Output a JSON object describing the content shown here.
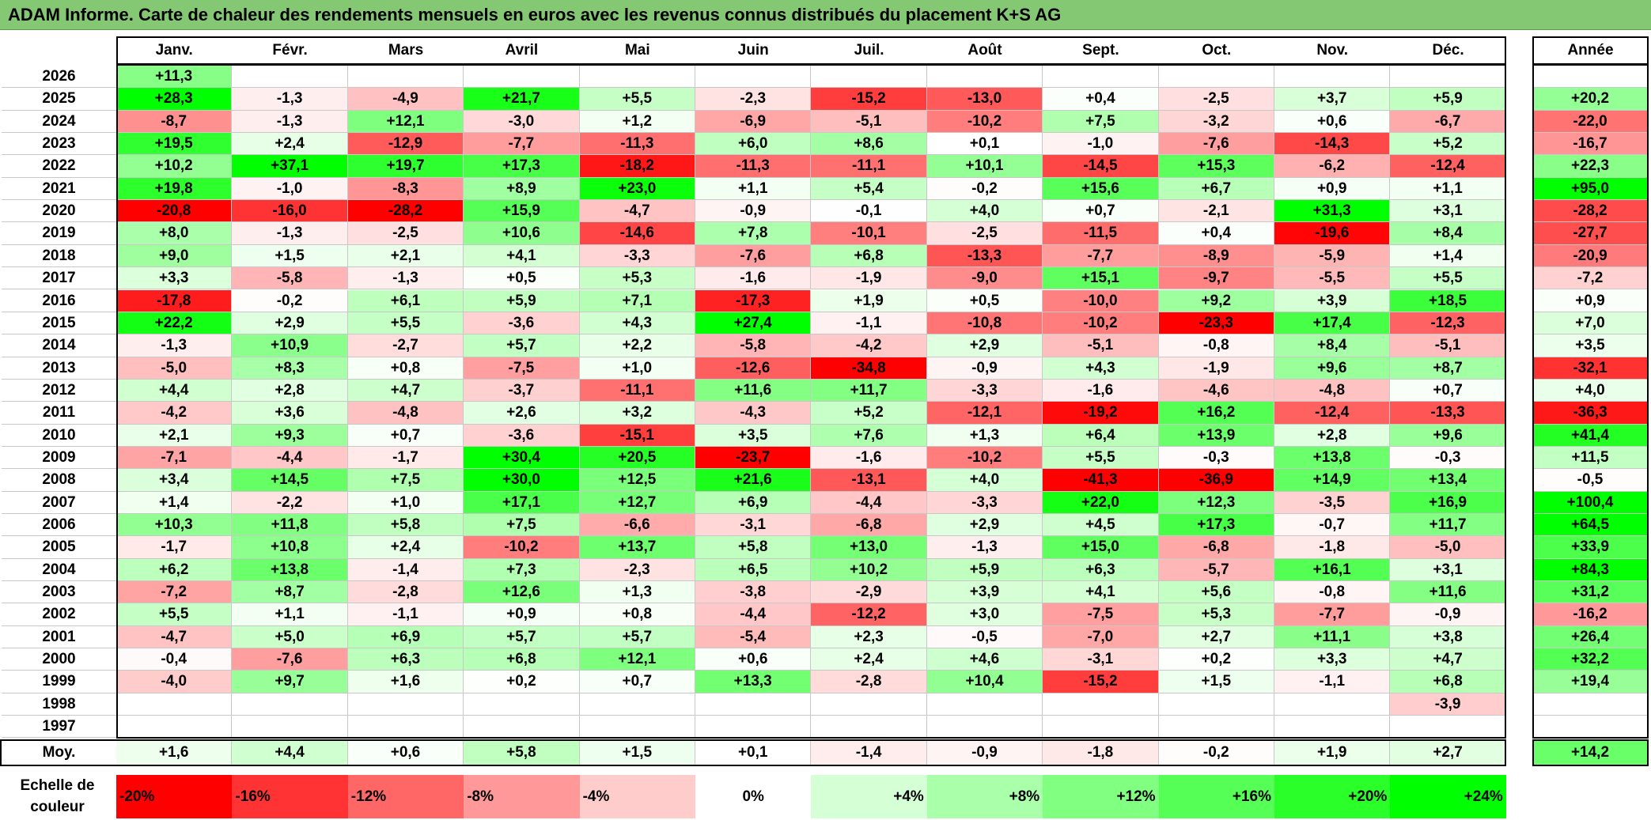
{
  "title": "ADAM Informe. Carte de chaleur des rendements mensuels en euros avec les revenus connus distribués du placement K+S AG",
  "chart_data": {
    "type": "heatmap",
    "months": [
      "Janv.",
      "Févr.",
      "Mars",
      "Avril",
      "Mai",
      "Juin",
      "Juil.",
      "Août",
      "Sept.",
      "Oct.",
      "Nov.",
      "Déc."
    ],
    "year_header": "Année",
    "avg_label": "Moy.",
    "rows": [
      {
        "year": "2026",
        "values": [
          "+11,3",
          "",
          "",
          "",
          "",
          "",
          "",
          "",
          "",
          "",
          "",
          ""
        ],
        "annual": ""
      },
      {
        "year": "2025",
        "values": [
          "+28,3",
          "-1,3",
          "-4,9",
          "+21,7",
          "+5,5",
          "-2,3",
          "-15,2",
          "-13,0",
          "+0,4",
          "-2,5",
          "+3,7",
          "+5,9"
        ],
        "annual": "+20,2"
      },
      {
        "year": "2024",
        "values": [
          "-8,7",
          "-1,3",
          "+12,1",
          "-3,0",
          "+1,2",
          "-6,9",
          "-5,1",
          "-10,2",
          "+7,5",
          "-3,2",
          "+0,6",
          "-6,7"
        ],
        "annual": "-22,0"
      },
      {
        "year": "2023",
        "values": [
          "+19,5",
          "+2,4",
          "-12,9",
          "-7,7",
          "-11,3",
          "+6,0",
          "+8,6",
          "+0,1",
          "-1,0",
          "-7,6",
          "-14,3",
          "+5,2"
        ],
        "annual": "-16,7"
      },
      {
        "year": "2022",
        "values": [
          "+10,2",
          "+37,1",
          "+19,7",
          "+17,3",
          "-18,2",
          "-11,3",
          "-11,1",
          "+10,1",
          "-14,5",
          "+15,3",
          "-6,2",
          "-12,4"
        ],
        "annual": "+22,3"
      },
      {
        "year": "2021",
        "values": [
          "+19,8",
          "-1,0",
          "-8,3",
          "+8,9",
          "+23,0",
          "+1,1",
          "+5,4",
          "-0,2",
          "+15,6",
          "+6,7",
          "+0,9",
          "+1,1"
        ],
        "annual": "+95,0"
      },
      {
        "year": "2020",
        "values": [
          "-20,8",
          "-16,0",
          "-28,2",
          "+15,9",
          "-4,7",
          "-0,9",
          "-0,1",
          "+4,0",
          "+0,7",
          "-2,1",
          "+31,3",
          "+3,1"
        ],
        "annual": "-28,2"
      },
      {
        "year": "2019",
        "values": [
          "+8,0",
          "-1,3",
          "-2,5",
          "+10,6",
          "-14,6",
          "+7,8",
          "-10,1",
          "-2,5",
          "-11,5",
          "+0,4",
          "-19,6",
          "+8,4"
        ],
        "annual": "-27,7"
      },
      {
        "year": "2018",
        "values": [
          "+9,0",
          "+1,5",
          "+2,1",
          "+4,1",
          "-3,3",
          "-7,6",
          "+6,8",
          "-13,3",
          "-7,7",
          "-8,9",
          "-5,9",
          "+1,4"
        ],
        "annual": "-20,9"
      },
      {
        "year": "2017",
        "values": [
          "+3,3",
          "-5,8",
          "-1,3",
          "+0,5",
          "+5,3",
          "-1,6",
          "-1,9",
          "-9,0",
          "+15,1",
          "-9,7",
          "-5,5",
          "+5,5"
        ],
        "annual": "-7,2"
      },
      {
        "year": "2016",
        "values": [
          "-17,8",
          "-0,2",
          "+6,1",
          "+5,9",
          "+7,1",
          "-17,3",
          "+1,9",
          "+0,5",
          "-10,0",
          "+9,2",
          "+3,9",
          "+18,5"
        ],
        "annual": "+0,9"
      },
      {
        "year": "2015",
        "values": [
          "+22,2",
          "+2,9",
          "+5,5",
          "-3,6",
          "+4,3",
          "+27,4",
          "-1,1",
          "-10,8",
          "-10,2",
          "-23,3",
          "+17,4",
          "-12,3"
        ],
        "annual": "+7,0"
      },
      {
        "year": "2014",
        "values": [
          "-1,3",
          "+10,9",
          "-2,7",
          "+5,7",
          "+2,2",
          "-5,8",
          "-4,2",
          "+2,9",
          "-5,1",
          "-0,8",
          "+8,4",
          "-5,1"
        ],
        "annual": "+3,5"
      },
      {
        "year": "2013",
        "values": [
          "-5,0",
          "+8,3",
          "+0,8",
          "-7,5",
          "+1,0",
          "-12,6",
          "-34,8",
          "-0,9",
          "+4,3",
          "-1,9",
          "+9,6",
          "+8,7"
        ],
        "annual": "-32,1"
      },
      {
        "year": "2012",
        "values": [
          "+4,4",
          "+2,8",
          "+4,7",
          "-3,7",
          "-11,1",
          "+11,6",
          "+11,7",
          "-3,3",
          "-1,6",
          "-4,6",
          "-4,8",
          "+0,7"
        ],
        "annual": "+4,0"
      },
      {
        "year": "2011",
        "values": [
          "-4,2",
          "+3,6",
          "-4,8",
          "+2,6",
          "+3,2",
          "-4,3",
          "+5,2",
          "-12,1",
          "-19,2",
          "+16,2",
          "-12,4",
          "-13,3"
        ],
        "annual": "-36,3"
      },
      {
        "year": "2010",
        "values": [
          "+2,1",
          "+9,3",
          "+0,7",
          "-3,6",
          "-15,1",
          "+3,5",
          "+7,6",
          "+1,3",
          "+6,4",
          "+13,9",
          "+2,8",
          "+9,6"
        ],
        "annual": "+41,4"
      },
      {
        "year": "2009",
        "values": [
          "-7,1",
          "-4,4",
          "-1,7",
          "+30,4",
          "+20,5",
          "-23,7",
          "-1,6",
          "-10,2",
          "+5,5",
          "-0,3",
          "+13,8",
          "-0,3"
        ],
        "annual": "+11,5"
      },
      {
        "year": "2008",
        "values": [
          "+3,4",
          "+14,5",
          "+7,5",
          "+30,0",
          "+12,5",
          "+21,6",
          "-13,1",
          "+4,0",
          "-41,3",
          "-36,9",
          "+14,9",
          "+13,4"
        ],
        "annual": "-0,5"
      },
      {
        "year": "2007",
        "values": [
          "+1,4",
          "-2,2",
          "+1,0",
          "+17,1",
          "+12,7",
          "+6,9",
          "-4,4",
          "-3,3",
          "+22,0",
          "+12,3",
          "-3,5",
          "+16,9"
        ],
        "annual": "+100,4"
      },
      {
        "year": "2006",
        "values": [
          "+10,3",
          "+11,8",
          "+5,8",
          "+7,5",
          "-6,6",
          "-3,1",
          "-6,8",
          "+2,9",
          "+4,5",
          "+17,3",
          "-0,7",
          "+11,7"
        ],
        "annual": "+64,5"
      },
      {
        "year": "2005",
        "values": [
          "-1,7",
          "+10,8",
          "+2,4",
          "-10,2",
          "+13,7",
          "+5,8",
          "+13,0",
          "-1,3",
          "+15,0",
          "-6,8",
          "-1,8",
          "-5,0"
        ],
        "annual": "+33,9"
      },
      {
        "year": "2004",
        "values": [
          "+6,2",
          "+13,8",
          "-1,4",
          "+7,3",
          "-2,3",
          "+6,5",
          "+10,2",
          "+5,9",
          "+6,3",
          "-5,7",
          "+16,1",
          "+3,1"
        ],
        "annual": "+84,3"
      },
      {
        "year": "2003",
        "values": [
          "-7,2",
          "+8,7",
          "-2,8",
          "+12,6",
          "+1,3",
          "-3,8",
          "-2,9",
          "+3,9",
          "+4,1",
          "+5,6",
          "-0,8",
          "+11,6"
        ],
        "annual": "+31,2"
      },
      {
        "year": "2002",
        "values": [
          "+5,5",
          "+1,1",
          "-1,1",
          "+0,9",
          "+0,8",
          "-4,4",
          "-12,2",
          "+3,0",
          "-7,5",
          "+5,3",
          "-7,7",
          "-0,9"
        ],
        "annual": "-16,2"
      },
      {
        "year": "2001",
        "values": [
          "-4,7",
          "+5,0",
          "+6,9",
          "+5,7",
          "+5,7",
          "-5,4",
          "+2,3",
          "-0,5",
          "-7,0",
          "+2,7",
          "+11,1",
          "+3,8"
        ],
        "annual": "+26,4"
      },
      {
        "year": "2000",
        "values": [
          "-0,4",
          "-7,6",
          "+6,3",
          "+6,8",
          "+12,1",
          "+0,6",
          "+2,4",
          "+4,6",
          "-3,1",
          "+0,2",
          "+3,3",
          "+4,7"
        ],
        "annual": "+32,2"
      },
      {
        "year": "1999",
        "values": [
          "-4,0",
          "+9,7",
          "+1,6",
          "+0,2",
          "+0,7",
          "+13,3",
          "-2,8",
          "+10,4",
          "-15,2",
          "+1,5",
          "-1,1",
          "+6,8"
        ],
        "annual": "+19,4"
      },
      {
        "year": "1998",
        "values": [
          "",
          "",
          "",
          "",
          "",
          "",
          "",
          "",
          "",
          "",
          "",
          "-3,9"
        ],
        "annual": ""
      },
      {
        "year": "1997",
        "values": [
          "",
          "",
          "",
          "",
          "",
          "",
          "",
          "",
          "",
          "",
          "",
          ""
        ],
        "annual": ""
      }
    ],
    "averages": [
      "+1,6",
      "+4,4",
      "+0,6",
      "+5,8",
      "+1,5",
      "+0,1",
      "-1,4",
      "-0,9",
      "-1,8",
      "-0,2",
      "+1,9",
      "+2,7"
    ],
    "average_annual": "+14,2",
    "scale_label": "Echelle de couleur",
    "scale": [
      {
        "label": "-20%",
        "value": -20,
        "color": "#ff0000"
      },
      {
        "label": "-16%",
        "value": -16,
        "color": "#ff3333"
      },
      {
        "label": "-12%",
        "value": -12,
        "color": "#ff6666"
      },
      {
        "label": "-8%",
        "value": -8,
        "color": "#ff9999"
      },
      {
        "label": "-4%",
        "value": -4,
        "color": "#ffcccc"
      },
      {
        "label": "0%",
        "value": 0,
        "color": "#ffffff"
      },
      {
        "label": "+4%",
        "value": 4,
        "color": "#d5ffd5"
      },
      {
        "label": "+8%",
        "value": 8,
        "color": "#aaffaa"
      },
      {
        "label": "+12%",
        "value": 12,
        "color": "#80ff80"
      },
      {
        "label": "+16%",
        "value": 16,
        "color": "#55ff55"
      },
      {
        "label": "+20%",
        "value": 20,
        "color": "#2bff2b"
      },
      {
        "label": "+24%",
        "value": 24,
        "color": "#00ff00"
      }
    ]
  }
}
